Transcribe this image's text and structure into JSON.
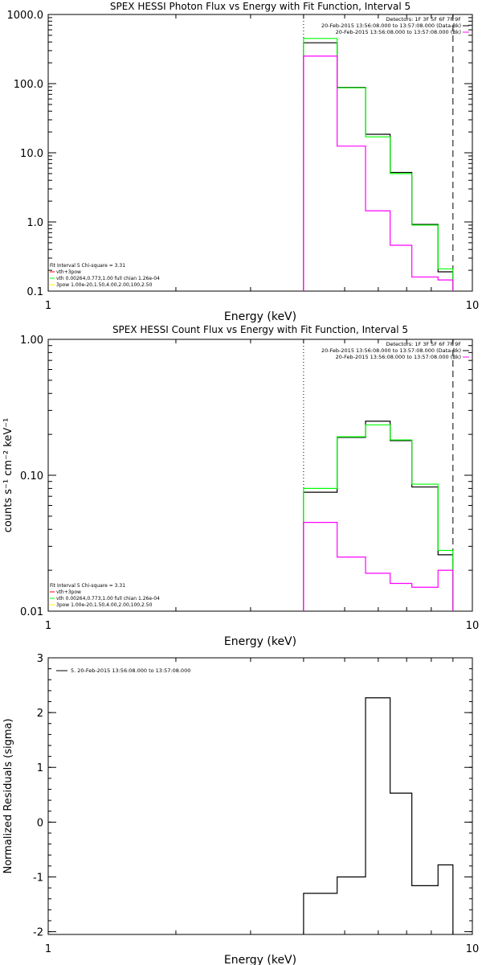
{
  "chart_data": [
    {
      "type": "line",
      "title": "SPEX HESSI Photon Flux vs Energy with Fit Function, Interval 5",
      "xlabel": "Energy (keV)",
      "ylabel": "",
      "x_scale": "log",
      "y_scale": "log",
      "xlim": [
        1,
        10
      ],
      "ylim": [
        0.1,
        1000
      ],
      "x_ticks": [
        {
          "v": 1,
          "label": "1"
        },
        {
          "v": 10,
          "label": "10"
        }
      ],
      "y_ticks": [
        {
          "v": 1000,
          "label": "1000.0"
        },
        {
          "v": 100,
          "label": "100.0"
        },
        {
          "v": 10,
          "label": "10.0"
        },
        {
          "v": 1,
          "label": "1.0"
        },
        {
          "v": 0.1,
          "label": "0.1"
        }
      ],
      "vlines": [
        {
          "x": 4,
          "style": "dotted"
        },
        {
          "x": 9,
          "style": "dashed"
        }
      ],
      "legend_top_right": [
        {
          "text": "Detectors: 1F 3F 5F 6F 7F 9F",
          "color": ""
        },
        {
          "text": "20-Feb-2015 13:56:08.000 to 13:57:08.000 (Data-Bk)",
          "color": "#000000"
        },
        {
          "text": "20-Feb-2015 13:56:08.000 to 13:57:08.000 (Bk)",
          "color": "#ff00ff"
        }
      ],
      "legend_bottom_left": [
        {
          "text": "Fit Interval  5    Chi-square = 3.31",
          "color": ""
        },
        {
          "text": "vth+3pow",
          "color": "#ff0000"
        },
        {
          "text": "vth 0.00264,0.773,1.00   full chian 1.26e-04",
          "color": "#00ff00"
        },
        {
          "text": "3pow 1.00e-20,1.50,4.00,2.00,100,2.50",
          "color": "#ffff00"
        }
      ],
      "edges": [
        4.0,
        4.8,
        5.6,
        6.4,
        7.2,
        8.3,
        9.0
      ],
      "series": [
        {
          "name": "Data-Bk",
          "color": "#000000",
          "values": [
            390,
            88,
            18.5,
            5.2,
            0.92,
            0.19
          ]
        },
        {
          "name": "vth+3pow",
          "color": "#00ff00",
          "values": [
            450,
            87,
            17,
            5.0,
            0.9,
            0.21
          ]
        },
        {
          "name": "Bk",
          "color": "#ff00ff",
          "values": [
            250,
            12.5,
            1.45,
            0.46,
            0.16,
            0.145
          ]
        }
      ]
    },
    {
      "type": "line",
      "title": "SPEX HESSI Count Flux vs Energy with Fit Function, Interval 5",
      "xlabel": "Energy (keV)",
      "ylabel": "counts s⁻¹ cm⁻² keV⁻¹",
      "x_scale": "log",
      "y_scale": "log",
      "xlim": [
        1,
        10
      ],
      "ylim": [
        0.01,
        1.0
      ],
      "x_ticks": [
        {
          "v": 1,
          "label": "1"
        },
        {
          "v": 10,
          "label": "10"
        }
      ],
      "y_ticks": [
        {
          "v": 1.0,
          "label": "1.00"
        },
        {
          "v": 0.1,
          "label": "0.10"
        },
        {
          "v": 0.01,
          "label": "0.01"
        }
      ],
      "vlines": [
        {
          "x": 4,
          "style": "dotted"
        },
        {
          "x": 9,
          "style": "dashed"
        }
      ],
      "legend_top_right": [
        {
          "text": "Detectors: 1F 3F 5F 6F 7F 9F",
          "color": ""
        },
        {
          "text": "20-Feb-2015 13:56:08.000 to 13:57:08.000 (Data-Bk)",
          "color": "#000000"
        },
        {
          "text": "20-Feb-2015 13:56:08.000 to 13:57:08.000 (Bk)",
          "color": "#ff00ff"
        }
      ],
      "legend_bottom_left": [
        {
          "text": "Fit Interval  5    Chi-square = 3.31",
          "color": ""
        },
        {
          "text": "vth+3pow",
          "color": "#ff0000"
        },
        {
          "text": "vth 0.00264,0.773,1.00   full chian 1.26e-04",
          "color": "#00ff00"
        },
        {
          "text": "3pow 1.00e-20,1.50,4.00,2.00,100,2.50",
          "color": "#ffff00"
        }
      ],
      "edges": [
        4.0,
        4.8,
        5.6,
        6.4,
        7.2,
        8.3,
        9.0
      ],
      "series": [
        {
          "name": "Data-Bk",
          "color": "#000000",
          "values": [
            0.075,
            0.19,
            0.25,
            0.18,
            0.082,
            0.026
          ]
        },
        {
          "name": "vth+3pow",
          "color": "#00ff00",
          "values": [
            0.08,
            0.192,
            0.235,
            0.182,
            0.086,
            0.028
          ]
        },
        {
          "name": "Bk",
          "color": "#ff00ff",
          "values": [
            0.045,
            0.025,
            0.019,
            0.016,
            0.015,
            0.02
          ]
        }
      ]
    },
    {
      "type": "line",
      "title": "",
      "xlabel": "Energy (keV)",
      "ylabel": "Normalized Residuals (sigma)",
      "x_scale": "log",
      "y_scale": "linear",
      "xlim": [
        1,
        10
      ],
      "ylim": [
        -2.05,
        3
      ],
      "x_ticks": [
        {
          "v": 1,
          "label": "1"
        },
        {
          "v": 10,
          "label": "10"
        }
      ],
      "y_ticks": [
        {
          "v": 3,
          "label": "3"
        },
        {
          "v": 2,
          "label": "2"
        },
        {
          "v": 1,
          "label": "1"
        },
        {
          "v": 0,
          "label": "0"
        },
        {
          "v": -1,
          "label": "-1"
        },
        {
          "v": -2,
          "label": "-2"
        }
      ],
      "legend_top_left": [
        {
          "text": "5. 20-Feb-2015 13:56:08.000 to 13:57:08.000",
          "color": "#000000"
        }
      ],
      "edges": [
        4.0,
        4.8,
        5.6,
        6.4,
        7.2,
        8.3,
        9.0
      ],
      "series": [
        {
          "name": "residuals",
          "color": "#000000",
          "values": [
            -1.3,
            -1.0,
            2.27,
            0.53,
            -1.16,
            -0.78
          ]
        }
      ]
    }
  ]
}
